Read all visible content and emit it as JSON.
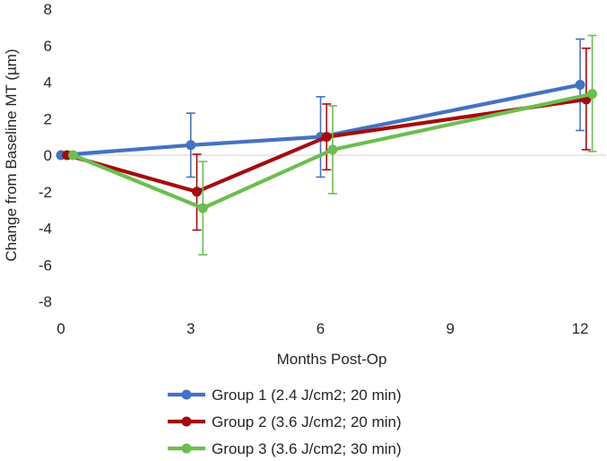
{
  "chart_data": {
    "type": "line",
    "title": "",
    "xlabel": "Months Post-Op",
    "ylabel": "Change from Baseline MT (µm)",
    "xlim": [
      0,
      12.6
    ],
    "ylim": [
      -8,
      8
    ],
    "xticks": [
      0,
      3,
      6,
      9,
      12
    ],
    "yticks": [
      -8,
      -6,
      -4,
      -2,
      0,
      2,
      4,
      6,
      8
    ],
    "grid": false,
    "legend_position": "bottom",
    "series": [
      {
        "name": "Group 1 (2.4 J/cm2; 20 min)",
        "color": "#4472C4",
        "x": [
          0,
          3,
          6,
          12
        ],
        "values": [
          0,
          0.55,
          1.0,
          3.85
        ],
        "err_low": [
          0,
          -1.2,
          -1.2,
          1.35
        ],
        "err_high": [
          0,
          2.3,
          3.2,
          6.35
        ]
      },
      {
        "name": "Group 2 (3.6 J/cm2; 20 min)",
        "color": "#A50B0B",
        "x": [
          0,
          3,
          6,
          12
        ],
        "values": [
          0,
          -2.0,
          1.0,
          3.05
        ],
        "err_low": [
          0,
          -4.1,
          -0.8,
          0.3
        ],
        "err_high": [
          0,
          0.05,
          2.8,
          5.85
        ]
      },
      {
        "name": "Group 3 (3.6 J/cm2; 30 min)",
        "color": "#6BBF4E",
        "x": [
          0,
          3,
          6,
          12
        ],
        "values": [
          0,
          -2.9,
          0.3,
          3.35
        ],
        "err_low": [
          0,
          -5.45,
          -2.1,
          0.2
        ],
        "err_high": [
          0,
          -0.35,
          2.7,
          6.55
        ]
      }
    ]
  }
}
